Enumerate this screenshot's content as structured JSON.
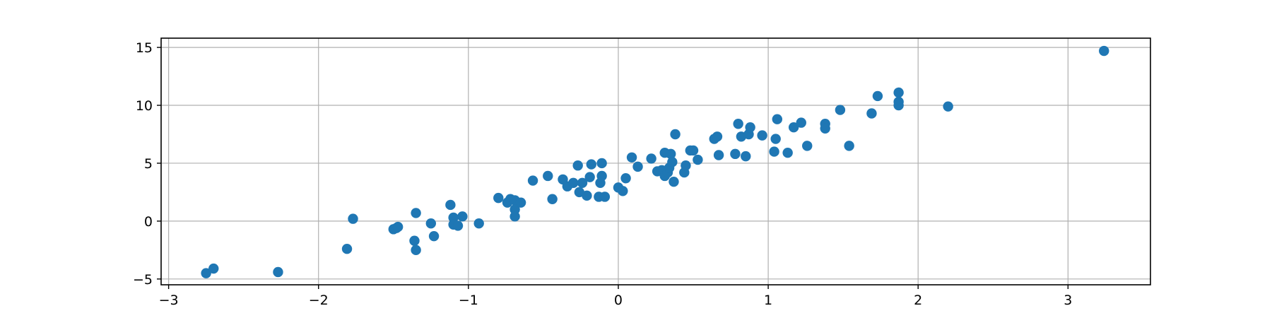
{
  "chart_data": {
    "type": "scatter",
    "title": "",
    "xlabel": "",
    "ylabel": "",
    "xlim": [
      -3.05,
      3.55
    ],
    "ylim": [
      -5.5,
      15.8
    ],
    "grid": true,
    "x_ticks": [
      -3,
      -2,
      -1,
      0,
      1,
      2,
      3
    ],
    "y_ticks": [
      -5,
      0,
      5,
      10,
      15
    ],
    "x_tick_labels": [
      "−3",
      "−2",
      "−1",
      "0",
      "1",
      "2",
      "3"
    ],
    "y_tick_labels": [
      "−5",
      "0",
      "5",
      "10",
      "15"
    ],
    "marker_color": "#1f77b4",
    "series": [
      {
        "points": [
          [
            -2.75,
            -4.5
          ],
          [
            -2.7,
            -4.1
          ],
          [
            -2.27,
            -4.4
          ],
          [
            -1.81,
            -2.4
          ],
          [
            -1.77,
            0.2
          ],
          [
            -1.5,
            -0.7
          ],
          [
            -1.48,
            -0.6
          ],
          [
            -1.47,
            -0.5
          ],
          [
            -1.35,
            0.7
          ],
          [
            -1.36,
            -1.7
          ],
          [
            -1.35,
            -2.5
          ],
          [
            -1.25,
            -0.2
          ],
          [
            -1.23,
            -1.3
          ],
          [
            -1.12,
            1.4
          ],
          [
            -1.1,
            0.3
          ],
          [
            -1.1,
            -0.3
          ],
          [
            -1.07,
            -0.4
          ],
          [
            -1.04,
            0.4
          ],
          [
            -0.93,
            -0.2
          ],
          [
            -0.8,
            2.0
          ],
          [
            -0.74,
            1.6
          ],
          [
            -0.72,
            1.9
          ],
          [
            -0.69,
            1.8
          ],
          [
            -0.69,
            1.0
          ],
          [
            -0.69,
            0.4
          ],
          [
            -0.65,
            1.6
          ],
          [
            -0.57,
            3.5
          ],
          [
            -0.47,
            3.9
          ],
          [
            -0.44,
            1.9
          ],
          [
            -0.37,
            3.6
          ],
          [
            -0.34,
            3.0
          ],
          [
            -0.3,
            3.3
          ],
          [
            -0.27,
            4.8
          ],
          [
            -0.26,
            2.5
          ],
          [
            -0.24,
            3.3
          ],
          [
            -0.21,
            2.2
          ],
          [
            -0.19,
            3.8
          ],
          [
            -0.18,
            4.9
          ],
          [
            -0.13,
            2.1
          ],
          [
            -0.12,
            3.3
          ],
          [
            -0.11,
            3.9
          ],
          [
            -0.11,
            5.0
          ],
          [
            -0.09,
            2.1
          ],
          [
            0.0,
            2.9
          ],
          [
            0.03,
            2.6
          ],
          [
            0.05,
            3.7
          ],
          [
            0.09,
            5.5
          ],
          [
            0.13,
            4.7
          ],
          [
            0.22,
            5.4
          ],
          [
            0.26,
            4.3
          ],
          [
            0.29,
            4.4
          ],
          [
            0.31,
            5.9
          ],
          [
            0.31,
            3.9
          ],
          [
            0.33,
            4.2
          ],
          [
            0.34,
            4.6
          ],
          [
            0.35,
            5.8
          ],
          [
            0.36,
            5.1
          ],
          [
            0.37,
            3.4
          ],
          [
            0.38,
            7.5
          ],
          [
            0.44,
            4.2
          ],
          [
            0.45,
            4.8
          ],
          [
            0.48,
            6.1
          ],
          [
            0.5,
            6.1
          ],
          [
            0.53,
            5.3
          ],
          [
            0.64,
            7.1
          ],
          [
            0.66,
            7.3
          ],
          [
            0.67,
            5.7
          ],
          [
            0.78,
            5.8
          ],
          [
            0.8,
            8.4
          ],
          [
            0.82,
            7.3
          ],
          [
            0.85,
            5.6
          ],
          [
            0.87,
            7.5
          ],
          [
            0.88,
            8.1
          ],
          [
            0.96,
            7.4
          ],
          [
            1.04,
            6.0
          ],
          [
            1.05,
            7.1
          ],
          [
            1.06,
            8.8
          ],
          [
            1.13,
            5.9
          ],
          [
            1.17,
            8.1
          ],
          [
            1.22,
            8.5
          ],
          [
            1.26,
            6.5
          ],
          [
            1.38,
            8.4
          ],
          [
            1.38,
            8.0
          ],
          [
            1.48,
            9.6
          ],
          [
            1.54,
            6.5
          ],
          [
            1.69,
            9.3
          ],
          [
            1.73,
            10.8
          ],
          [
            1.87,
            11.1
          ],
          [
            1.87,
            10.3
          ],
          [
            1.87,
            10.0
          ],
          [
            2.2,
            9.9
          ],
          [
            3.24,
            14.7
          ]
        ]
      }
    ]
  }
}
